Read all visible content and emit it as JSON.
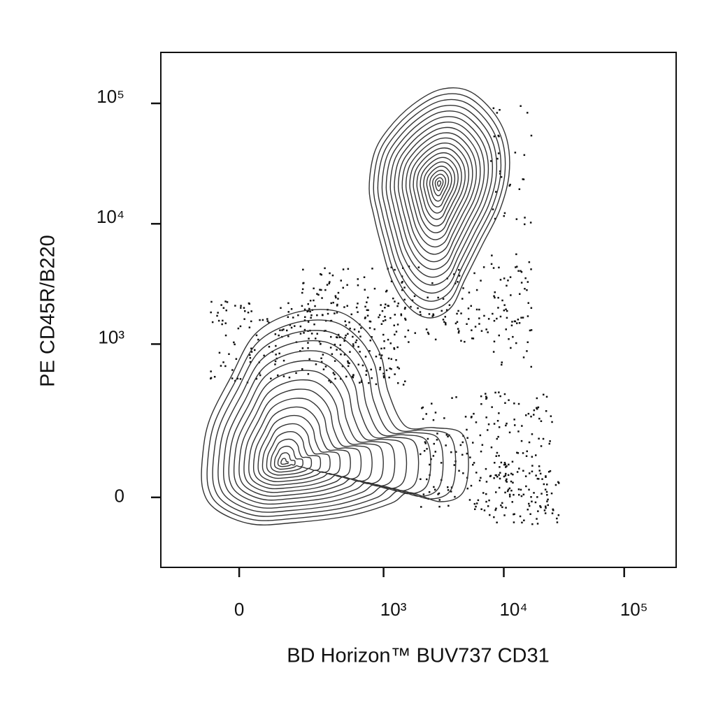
{
  "chart_data": {
    "type": "contour",
    "x_label": "BD Horizon™ BUV737 CD31",
    "y_label": "PE CD45R/B220",
    "xscale": "biexponential",
    "yscale": "biexponential",
    "xlim": [
      -270,
      270000
    ],
    "ylim": [
      -190,
      265000
    ],
    "xticks": [
      0,
      {
        "value": 1000,
        "label": "10³"
      },
      {
        "value": 10000,
        "label": "10⁴"
      },
      {
        "value": 100000,
        "label": "10⁵"
      }
    ],
    "yticks": [
      0,
      {
        "value": 1000,
        "label": "10³"
      },
      {
        "value": 10000,
        "label": "10⁴"
      },
      {
        "value": 100000,
        "label": "10⁵"
      }
    ],
    "color": "#333333"
  }
}
